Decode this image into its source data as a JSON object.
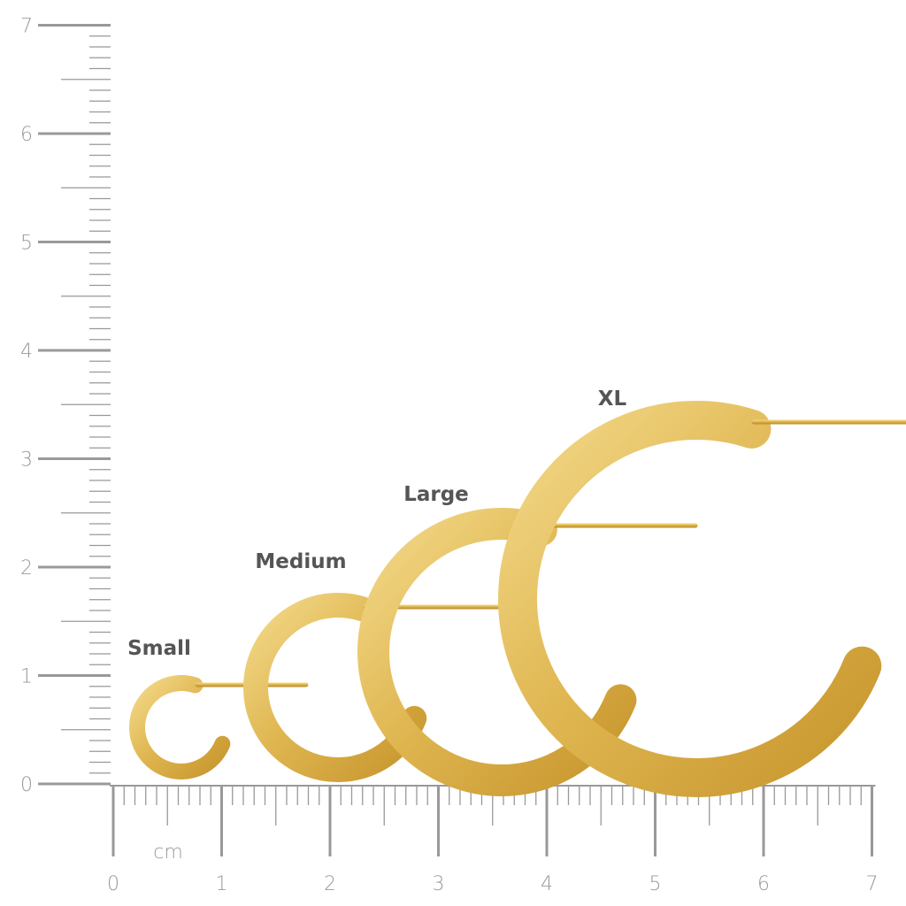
{
  "sizes": [
    "Small",
    "Medium",
    "Large",
    "XL"
  ],
  "unit": "cm",
  "horizontal_ruler": {
    "labels": [
      "0",
      "1",
      "2",
      "3",
      "4",
      "5",
      "6",
      "7"
    ]
  },
  "vertical_ruler": {
    "labels": [
      "0",
      "1",
      "2",
      "3",
      "4",
      "5",
      "6",
      "7"
    ]
  }
}
